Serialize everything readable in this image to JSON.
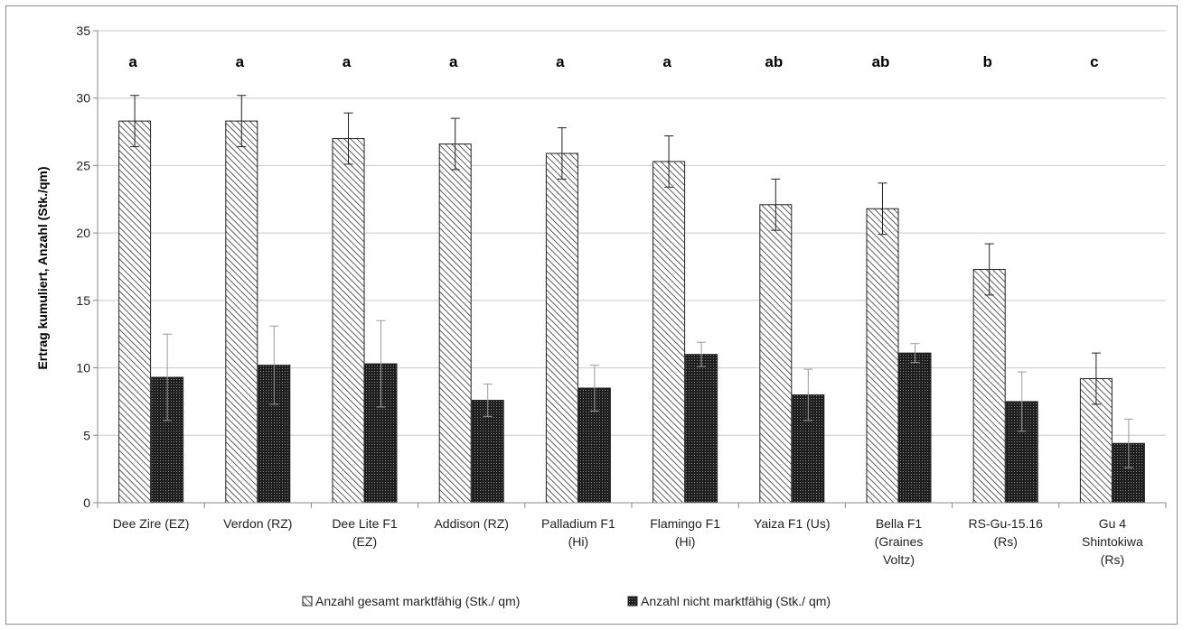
{
  "chart_data": {
    "type": "bar",
    "ylabel": "Ertrag kumuliert, Anzahl (Stk./qm)",
    "xlabel": "",
    "ylim": [
      0,
      35
    ],
    "yticks": [
      0,
      5,
      10,
      15,
      20,
      25,
      30,
      35
    ],
    "grid": true,
    "legend_position": "bottom",
    "categories": [
      [
        "Dee Zire (EZ)"
      ],
      [
        "Verdon (RZ)"
      ],
      [
        "Dee Lite F1",
        "(EZ)"
      ],
      [
        "Addison (RZ)"
      ],
      [
        "Palladium F1",
        "(Hi)"
      ],
      [
        "Flamingo F1",
        "(Hi)"
      ],
      [
        "Yaiza F1 (Us)"
      ],
      [
        "Bella F1",
        "(Graines",
        "Voltz)"
      ],
      [
        "RS-Gu-15.16",
        "(Rs)"
      ],
      [
        "Gu 4",
        "Shintokiwa",
        "(Rs)"
      ]
    ],
    "significance_letters": [
      "a",
      "a",
      "a",
      "a",
      "a",
      "a",
      "ab",
      "ab",
      "b",
      "c"
    ],
    "series": [
      {
        "name": "Anzahl gesamt marktfähig (Stk./ qm)",
        "pattern": "diagonal-hatch",
        "values": [
          28.3,
          28.3,
          27.0,
          26.6,
          25.9,
          25.3,
          22.1,
          21.8,
          17.3,
          9.2
        ],
        "errors": [
          1.9,
          1.9,
          1.9,
          1.9,
          1.9,
          1.9,
          1.9,
          1.9,
          1.9,
          1.9
        ]
      },
      {
        "name": "Anzahl nicht marktfähig (Stk./ qm)",
        "pattern": "dark-dotted",
        "values": [
          9.3,
          10.2,
          10.3,
          7.6,
          8.5,
          11.0,
          8.0,
          11.1,
          7.5,
          4.4
        ],
        "errors": [
          3.2,
          2.9,
          3.2,
          1.2,
          1.7,
          0.9,
          1.9,
          0.7,
          2.2,
          1.8
        ]
      }
    ]
  }
}
